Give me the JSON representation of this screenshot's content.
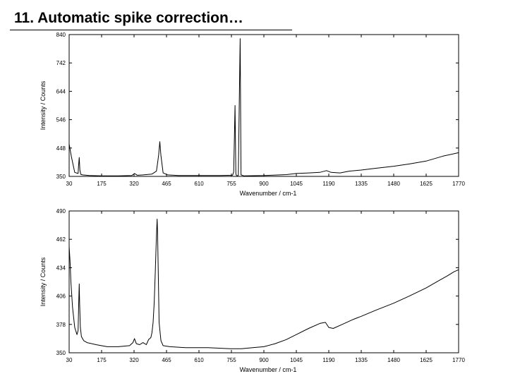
{
  "slide": {
    "title": "11. Automatic spike correction…"
  },
  "colors": {
    "line": "#000000",
    "frame": "#000000",
    "background": "#ffffff"
  },
  "chart_data": [
    {
      "type": "line",
      "title": "",
      "xlabel": "Wavenumber / cm-1",
      "ylabel": "Intensity / Counts",
      "xlim": [
        30,
        1770
      ],
      "ylim": [
        350,
        840
      ],
      "xticks": [
        30,
        175,
        320,
        465,
        610,
        755,
        900,
        1045,
        1190,
        1335,
        1480,
        1625,
        1770
      ],
      "yticks": [
        350,
        448,
        546,
        644,
        742,
        840
      ],
      "grid": false,
      "series": [
        {
          "x": [
            30,
            40,
            55,
            70,
            72,
            75,
            78,
            82,
            90,
            120,
            175,
            250,
            310,
            322,
            335,
            360,
            400,
            420,
            425,
            430,
            435,
            440,
            450,
            470,
            520,
            600,
            700,
            760,
            765,
            768,
            771,
            775,
            778,
            782,
            786,
            790,
            794,
            798,
            810,
            900,
            1000,
            1045,
            1100,
            1150,
            1180,
            1200,
            1240,
            1280,
            1335,
            1400,
            1480,
            1550,
            1625,
            1700,
            1770
          ],
          "values": [
            462,
            418,
            364,
            360,
            385,
            415,
            372,
            357,
            355,
            353,
            352,
            352,
            353,
            360,
            354,
            355,
            358,
            368,
            395,
            425,
            470,
            422,
            362,
            355,
            353,
            353,
            353,
            354,
            365,
            470,
            595,
            358,
            353,
            352,
            354,
            600,
            826,
            355,
            352,
            353,
            356,
            360,
            362,
            364,
            370,
            364,
            362,
            368,
            372,
            378,
            385,
            393,
            403,
            420,
            432
          ]
        }
      ]
    },
    {
      "type": "line",
      "title": "",
      "xlabel": "Wavenumber / cm-1",
      "ylabel": "Intensity / Counts",
      "xlim": [
        30,
        1770
      ],
      "ylim": [
        350,
        490
      ],
      "xticks": [
        30,
        175,
        320,
        465,
        610,
        755,
        900,
        1045,
        1190,
        1335,
        1480,
        1625,
        1770
      ],
      "yticks": [
        350,
        378,
        406,
        434,
        462,
        490
      ],
      "grid": false,
      "series": [
        {
          "x": [
            30,
            34,
            38,
            45,
            55,
            65,
            70,
            73,
            75,
            77,
            80,
            85,
            95,
            110,
            150,
            200,
            250,
            300,
            315,
            322,
            330,
            345,
            360,
            375,
            385,
            395,
            400,
            405,
            410,
            415,
            420,
            423,
            425,
            428,
            432,
            440,
            450,
            480,
            550,
            650,
            750,
            800,
            850,
            900,
            950,
            1000,
            1045,
            1100,
            1150,
            1175,
            1190,
            1210,
            1250,
            1300,
            1335,
            1400,
            1480,
            1550,
            1625,
            1680,
            1720,
            1750,
            1770
          ],
          "values": [
            455,
            440,
            420,
            395,
            375,
            368,
            372,
            400,
            418,
            398,
            375,
            366,
            362,
            360,
            358,
            356,
            356,
            357,
            360,
            364,
            359,
            358,
            360,
            358,
            363,
            365,
            370,
            380,
            400,
            430,
            465,
            482,
            470,
            430,
            380,
            362,
            357,
            356,
            355,
            355,
            354,
            354,
            355,
            356,
            359,
            363,
            368,
            374,
            379,
            380,
            375,
            374,
            378,
            383,
            386,
            392,
            399,
            406,
            414,
            421,
            426,
            430,
            432
          ]
        }
      ]
    }
  ]
}
